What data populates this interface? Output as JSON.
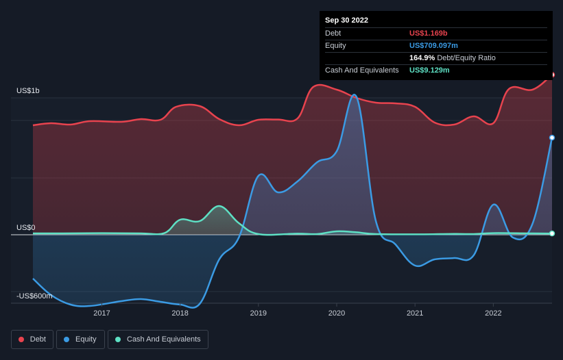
{
  "tooltip": {
    "date": "Sep 30 2022",
    "rows": [
      {
        "label": "Debt",
        "value": "US$1.169b",
        "color": "#e8434e"
      },
      {
        "label": "Equity",
        "value": "US$709.097m",
        "color": "#3b9be4"
      },
      {
        "label": "",
        "value": "164.9%",
        "suffix": "Debt/Equity Ratio",
        "color": "#ffffff"
      },
      {
        "label": "Cash And Equivalents",
        "value": "US$9.129m",
        "color": "#5ee0c4"
      }
    ]
  },
  "legend": [
    {
      "label": "Debt",
      "color": "#e8434e"
    },
    {
      "label": "Equity",
      "color": "#3b9be4"
    },
    {
      "label": "Cash And Equivalents",
      "color": "#5ee0c4"
    }
  ],
  "chart_data": {
    "type": "area",
    "y_tick_labels": [
      "US$1b",
      "US$0",
      "-US$600m"
    ],
    "x_tick_labels": [
      "2017",
      "2018",
      "2019",
      "2020",
      "2021",
      "2022"
    ],
    "xlim": [
      2016.12,
      2022.75
    ],
    "ylim": [
      -600,
      1200
    ],
    "grid": true,
    "series": [
      {
        "name": "Debt",
        "color": "#e8434e",
        "points": [
          [
            2016.12,
            800
          ],
          [
            2016.35,
            815
          ],
          [
            2016.6,
            805
          ],
          [
            2016.85,
            830
          ],
          [
            2017.25,
            825
          ],
          [
            2017.5,
            845
          ],
          [
            2017.75,
            840
          ],
          [
            2017.95,
            935
          ],
          [
            2018.25,
            940
          ],
          [
            2018.5,
            845
          ],
          [
            2018.75,
            800
          ],
          [
            2019.0,
            840
          ],
          [
            2019.25,
            842
          ],
          [
            2019.5,
            850
          ],
          [
            2019.7,
            1080
          ],
          [
            2020.0,
            1060
          ],
          [
            2020.25,
            1000
          ],
          [
            2020.5,
            965
          ],
          [
            2020.75,
            960
          ],
          [
            2021.0,
            935
          ],
          [
            2021.25,
            820
          ],
          [
            2021.5,
            805
          ],
          [
            2021.75,
            865
          ],
          [
            2022.0,
            815
          ],
          [
            2022.2,
            1065
          ],
          [
            2022.5,
            1060
          ],
          [
            2022.75,
            1169
          ]
        ]
      },
      {
        "name": "Equity",
        "color": "#3b9be4",
        "points": [
          [
            2016.12,
            -320
          ],
          [
            2016.35,
            -440
          ],
          [
            2016.6,
            -510
          ],
          [
            2016.85,
            -520
          ],
          [
            2017.25,
            -485
          ],
          [
            2017.5,
            -470
          ],
          [
            2017.75,
            -490
          ],
          [
            2018.0,
            -510
          ],
          [
            2018.25,
            -505
          ],
          [
            2018.5,
            -180
          ],
          [
            2018.75,
            -20
          ],
          [
            2019.0,
            430
          ],
          [
            2019.25,
            310
          ],
          [
            2019.5,
            390
          ],
          [
            2019.75,
            530
          ],
          [
            2020.0,
            610
          ],
          [
            2020.25,
            1010
          ],
          [
            2020.5,
            100
          ],
          [
            2020.75,
            -70
          ],
          [
            2021.0,
            -225
          ],
          [
            2021.25,
            -180
          ],
          [
            2021.5,
            -170
          ],
          [
            2021.75,
            -150
          ],
          [
            2022.0,
            220
          ],
          [
            2022.25,
            -20
          ],
          [
            2022.5,
            80
          ],
          [
            2022.75,
            709.097
          ]
        ]
      },
      {
        "name": "Cash And Equivalents",
        "color": "#5ee0c4",
        "points": [
          [
            2016.12,
            10
          ],
          [
            2016.5,
            10
          ],
          [
            2017.0,
            12
          ],
          [
            2017.5,
            10
          ],
          [
            2017.8,
            12
          ],
          [
            2018.0,
            110
          ],
          [
            2018.25,
            100
          ],
          [
            2018.5,
            210
          ],
          [
            2018.75,
            85
          ],
          [
            2019.0,
            5
          ],
          [
            2019.5,
            8
          ],
          [
            2019.75,
            5
          ],
          [
            2020.0,
            25
          ],
          [
            2020.25,
            18
          ],
          [
            2020.5,
            5
          ],
          [
            2021.0,
            3
          ],
          [
            2021.5,
            6
          ],
          [
            2021.75,
            5
          ],
          [
            2022.0,
            12
          ],
          [
            2022.5,
            10
          ],
          [
            2022.75,
            9.129
          ]
        ]
      }
    ]
  }
}
